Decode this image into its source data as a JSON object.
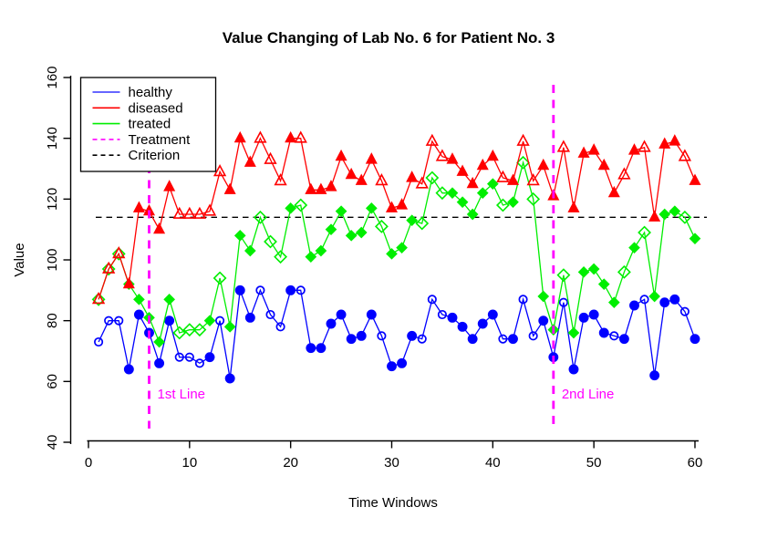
{
  "title": "Value Changing of Lab No. 6 for Patient No. 3",
  "x_axis": {
    "label": "Time Windows",
    "ticks": [
      0,
      10,
      20,
      30,
      40,
      50,
      60
    ],
    "range": [
      0,
      60
    ]
  },
  "y_axis": {
    "label": "Value",
    "ticks": [
      40,
      60,
      80,
      100,
      120,
      140,
      160
    ],
    "range": [
      40,
      160
    ]
  },
  "legend": {
    "items": [
      {
        "label": "healthy",
        "color": "#3333ff",
        "dashed": false
      },
      {
        "label": "diseased",
        "color": "#ff0000",
        "dashed": false
      },
      {
        "label": "treated",
        "color": "#00ee00",
        "dashed": false
      },
      {
        "label": "Treatment",
        "color": "#ff00ff",
        "dashed": true
      },
      {
        "label": "Criterion",
        "color": "#000000",
        "dashed": true
      }
    ]
  },
  "annotations": {
    "treatment_line_1": {
      "x": 6,
      "label": "1st Line",
      "color": "#ff00ff"
    },
    "treatment_line_2": {
      "x": 46,
      "label": "2nd Line",
      "color": "#ff00ff"
    },
    "criterion": {
      "value": 114,
      "color": "#000000"
    }
  },
  "chart_data": {
    "type": "line",
    "x_first": 1,
    "x_step": 1,
    "xlim": [
      0,
      60
    ],
    "ylim": [
      40,
      160
    ],
    "grid": false,
    "legend_position": "top-left",
    "series": [
      {
        "name": "healthy",
        "color": "#0000ff",
        "marker": "circle",
        "values": [
          73,
          80,
          80,
          64,
          82,
          76,
          66,
          80,
          68,
          68,
          66,
          68,
          80,
          61,
          90,
          81,
          90,
          82,
          78,
          90,
          90,
          71,
          71,
          79,
          82,
          74,
          75,
          82,
          75,
          65,
          66,
          75,
          74,
          87,
          82,
          81,
          78,
          74,
          79,
          82,
          74,
          74,
          87,
          75,
          80,
          68,
          86,
          64,
          81,
          82,
          76,
          75,
          74,
          85,
          87,
          62,
          86,
          87,
          83,
          74
        ],
        "open_x": [
          1,
          2,
          3,
          9,
          10,
          11,
          13,
          17,
          18,
          19,
          21,
          29,
          33,
          34,
          35,
          41,
          43,
          44,
          47,
          52,
          55,
          59
        ]
      },
      {
        "name": "diseased",
        "color": "#ff0000",
        "marker": "triangle",
        "values": [
          87,
          97,
          102,
          92,
          117,
          116,
          110,
          124,
          115,
          115,
          115,
          116,
          129,
          123,
          140,
          132,
          140,
          133,
          126,
          140,
          140,
          123,
          123,
          124,
          134,
          128,
          126,
          133,
          126,
          117,
          118,
          127,
          125,
          139,
          134,
          133,
          129,
          125,
          131,
          134,
          127,
          126,
          139,
          126,
          131,
          121,
          137,
          117,
          135,
          136,
          131,
          122,
          128,
          136,
          137,
          114,
          138,
          139,
          134,
          126
        ],
        "open_x": [
          1,
          2,
          3,
          9,
          10,
          11,
          12,
          13,
          17,
          18,
          19,
          21,
          29,
          33,
          34,
          35,
          41,
          43,
          44,
          47,
          53,
          55,
          59
        ]
      },
      {
        "name": "treated",
        "color": "#00ee00",
        "marker": "diamond",
        "values": [
          87,
          97,
          102,
          92,
          87,
          81,
          73,
          87,
          76,
          77,
          77,
          80,
          94,
          78,
          108,
          103,
          114,
          106,
          101,
          117,
          118,
          101,
          103,
          110,
          116,
          108,
          109,
          117,
          111,
          102,
          104,
          113,
          112,
          127,
          122,
          122,
          119,
          115,
          122,
          125,
          118,
          119,
          132,
          120,
          88,
          77,
          95,
          76,
          96,
          97,
          92,
          86,
          96,
          104,
          109,
          88,
          115,
          116,
          114,
          107
        ],
        "open_x": [
          1,
          2,
          3,
          9,
          10,
          11,
          13,
          17,
          18,
          19,
          21,
          29,
          33,
          34,
          35,
          41,
          43,
          44,
          47,
          53,
          55,
          59
        ]
      }
    ]
  }
}
